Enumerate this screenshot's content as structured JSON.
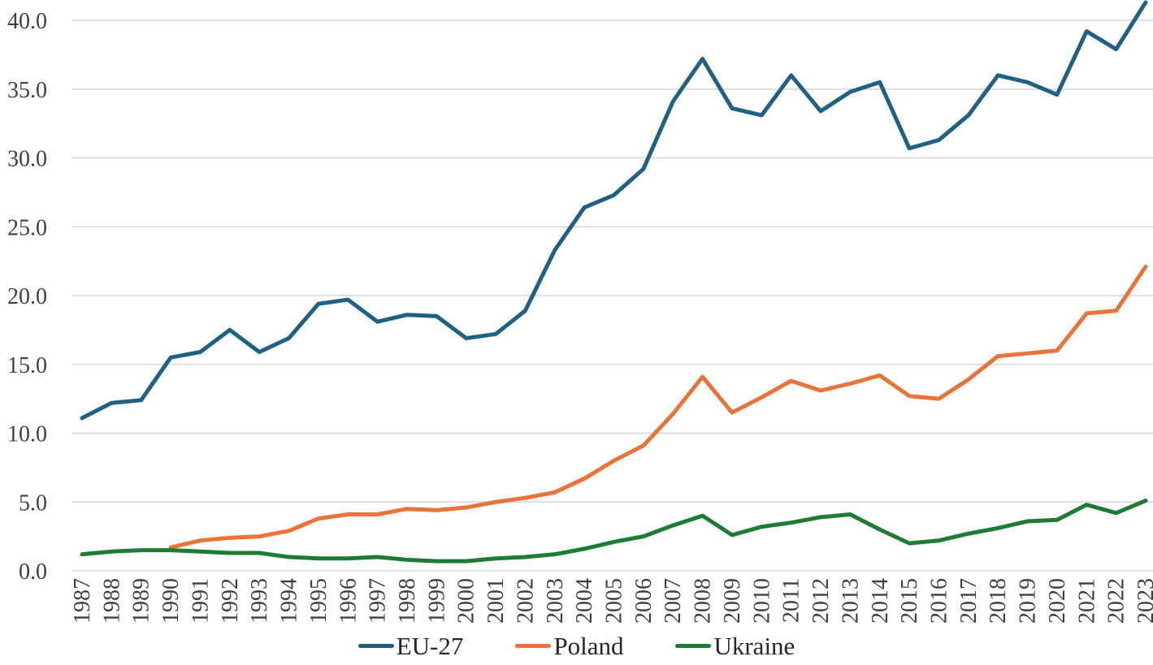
{
  "chart_data": {
    "type": "line",
    "title": "",
    "xlabel": "",
    "ylabel": "",
    "grid": true,
    "legend_position": "bottom",
    "ylim": [
      0,
      41.5
    ],
    "yticks": [
      0,
      5,
      10,
      15,
      20,
      25,
      30,
      35,
      40
    ],
    "ytick_labels": [
      "0.0",
      "5.0",
      "10.0",
      "15.0",
      "20.0",
      "25.0",
      "30.0",
      "35.0",
      "40.0"
    ],
    "x": [
      "1987",
      "1988",
      "1989",
      "1990",
      "1991",
      "1992",
      "1993",
      "1994",
      "1995",
      "1996",
      "1997",
      "1998",
      "1999",
      "2000",
      "2001",
      "2002",
      "2003",
      "2004",
      "2005",
      "2006",
      "2007",
      "2008",
      "2009",
      "2010",
      "2011",
      "2012",
      "2013",
      "2014",
      "2015",
      "2016",
      "2017",
      "2018",
      "2019",
      "2020",
      "2021",
      "2022",
      "2023"
    ],
    "series": [
      {
        "name": "EU-27",
        "color": "#1F6083",
        "values": [
          11.1,
          12.2,
          12.4,
          15.5,
          15.9,
          17.5,
          15.9,
          16.9,
          19.4,
          19.7,
          18.1,
          18.6,
          18.5,
          16.9,
          17.2,
          18.9,
          23.3,
          26.4,
          27.3,
          29.2,
          34.1,
          37.2,
          33.6,
          33.1,
          36.0,
          33.4,
          34.8,
          35.5,
          30.7,
          31.3,
          33.1,
          36.0,
          35.5,
          34.6,
          39.2,
          37.9,
          41.3
        ]
      },
      {
        "name": "Poland",
        "color": "#E8743A",
        "values": [
          null,
          null,
          null,
          1.7,
          2.2,
          2.4,
          2.5,
          2.9,
          3.8,
          4.1,
          4.1,
          4.5,
          4.4,
          4.6,
          5.0,
          5.3,
          5.7,
          6.7,
          8.0,
          9.1,
          11.4,
          14.1,
          11.5,
          12.6,
          13.8,
          13.1,
          13.6,
          14.2,
          12.7,
          12.5,
          13.9,
          15.6,
          15.8,
          16.0,
          18.7,
          18.9,
          22.1
        ]
      },
      {
        "name": "Ukraine",
        "color": "#1E7B34",
        "values": [
          1.2,
          1.4,
          1.5,
          1.5,
          1.4,
          1.3,
          1.3,
          1.0,
          0.9,
          0.9,
          1.0,
          0.8,
          0.7,
          0.7,
          0.9,
          1.0,
          1.2,
          1.6,
          2.1,
          2.5,
          3.3,
          4.0,
          2.6,
          3.2,
          3.5,
          3.9,
          4.1,
          3.0,
          2.0,
          2.2,
          2.7,
          3.1,
          3.6,
          3.7,
          4.8,
          4.2,
          5.1
        ]
      }
    ]
  }
}
